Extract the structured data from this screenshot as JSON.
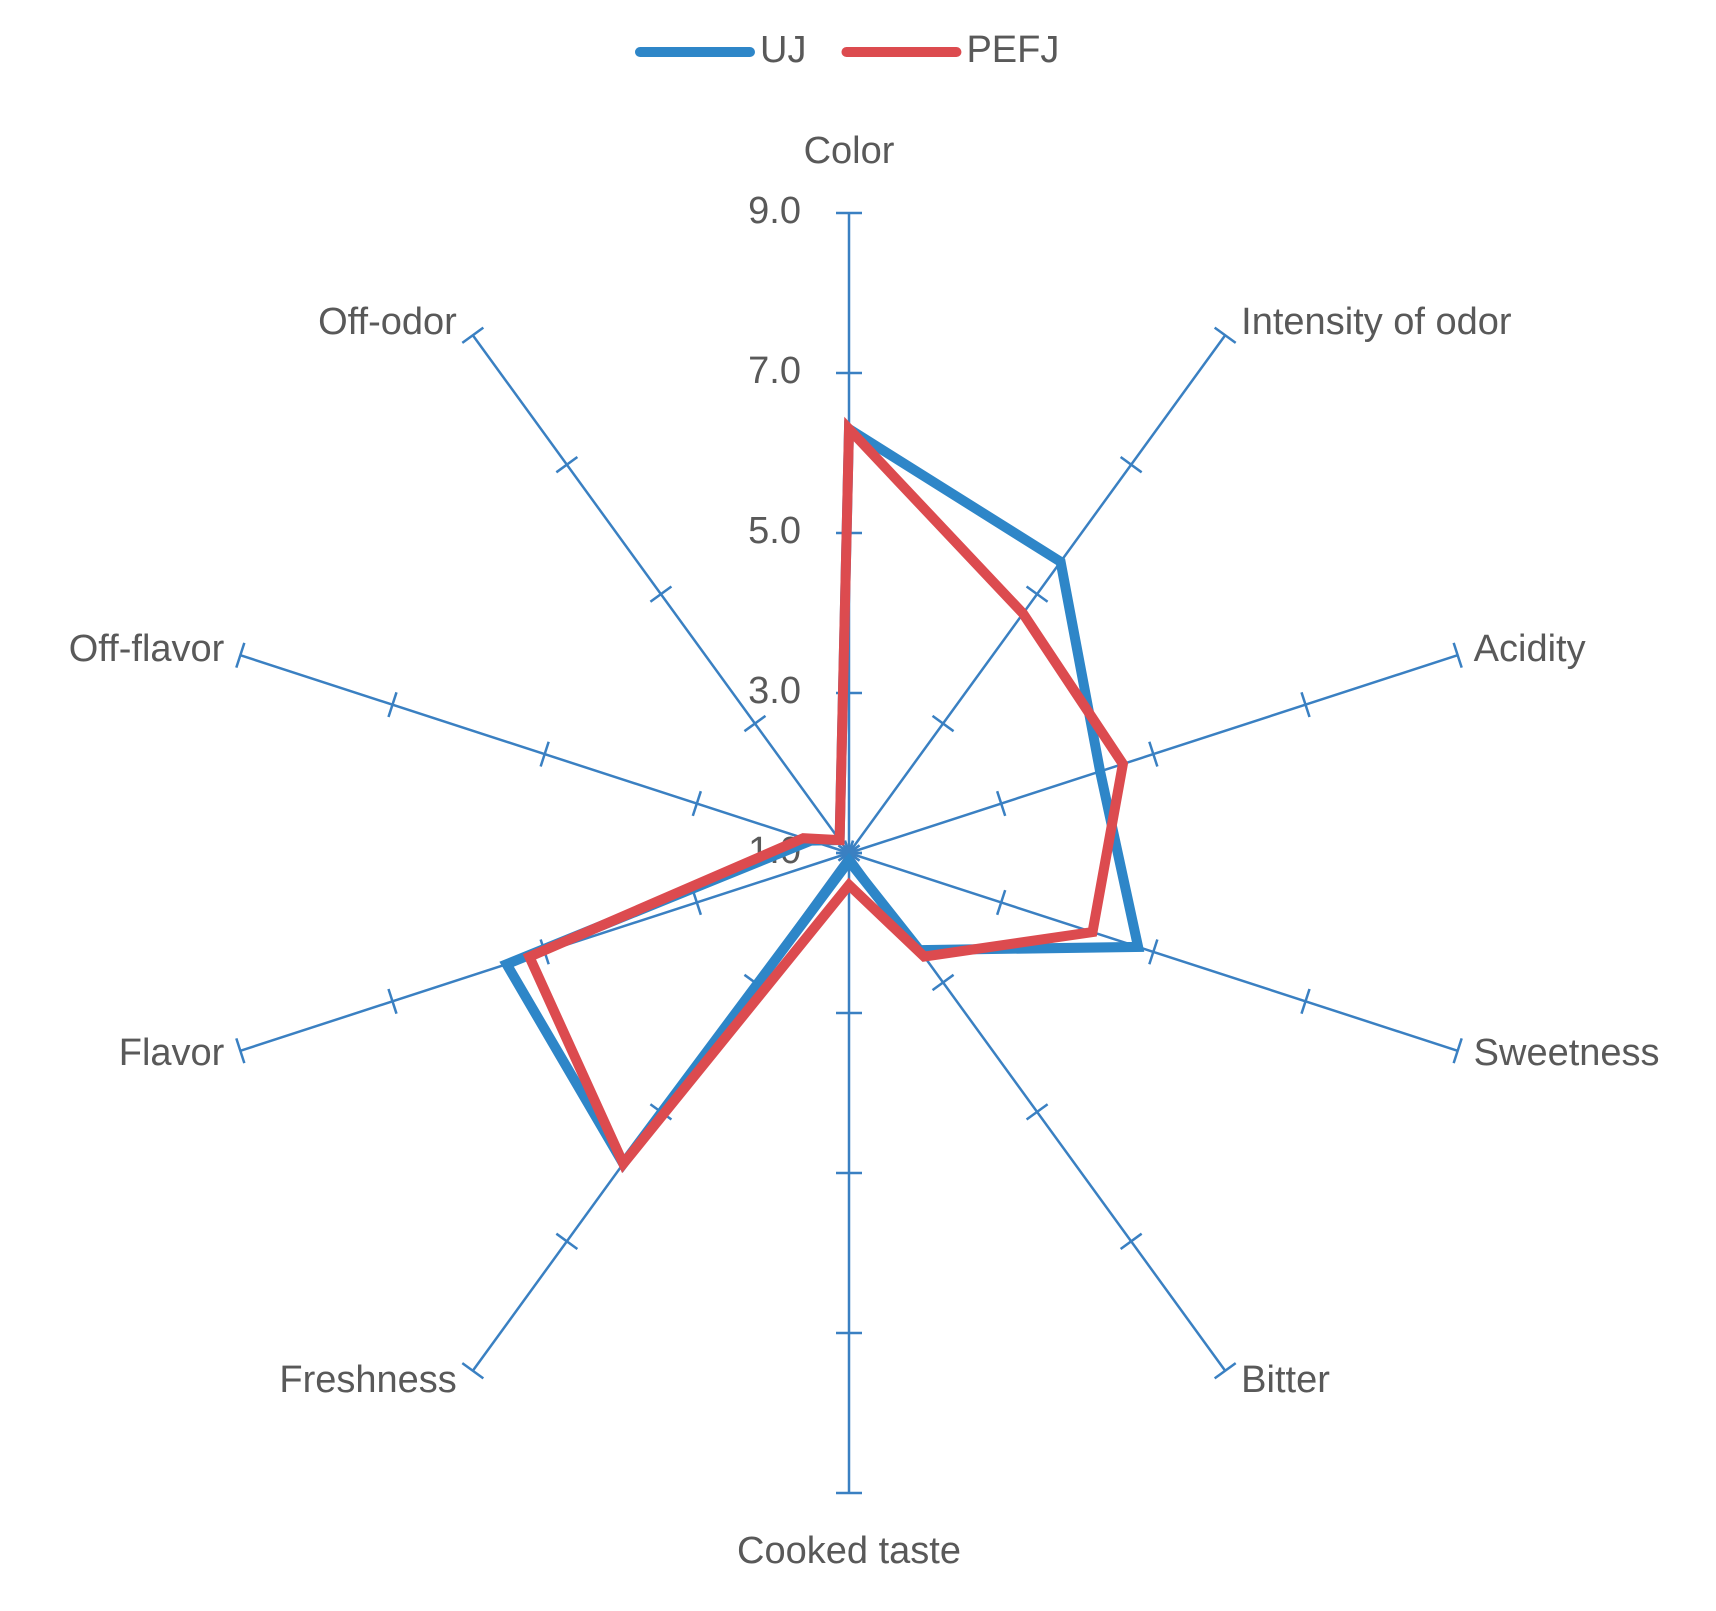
{
  "chart_data": {
    "type": "radar",
    "categories": [
      "Color",
      "Intensity of odor",
      "Acidity",
      "Sweetness",
      "Bitter",
      "Cooked taste",
      "Freshness",
      "Flavor",
      "Off-flavor",
      "Off-odor"
    ],
    "series": [
      {
        "name": "UJ",
        "color": "#2e86c8",
        "values": [
          6.3,
          5.5,
          4.3,
          4.8,
          2.5,
          1.1,
          5.8,
          5.5,
          1.5,
          1.2
        ]
      },
      {
        "name": "PEFJ",
        "color": "#dc4b4f",
        "values": [
          6.3,
          4.7,
          4.6,
          4.2,
          2.6,
          1.4,
          5.8,
          5.2,
          1.6,
          1.2
        ]
      }
    ],
    "ylim": [
      1,
      9
    ],
    "yticks": [
      {
        "value": 1,
        "label": "1.0"
      },
      {
        "value": 3,
        "label": "3.0"
      },
      {
        "value": 5,
        "label": "5.0"
      },
      {
        "value": 7,
        "label": "7.0"
      },
      {
        "value": 9,
        "label": "9.0"
      }
    ],
    "axis_color": "#3a80c2",
    "legend": "top"
  }
}
